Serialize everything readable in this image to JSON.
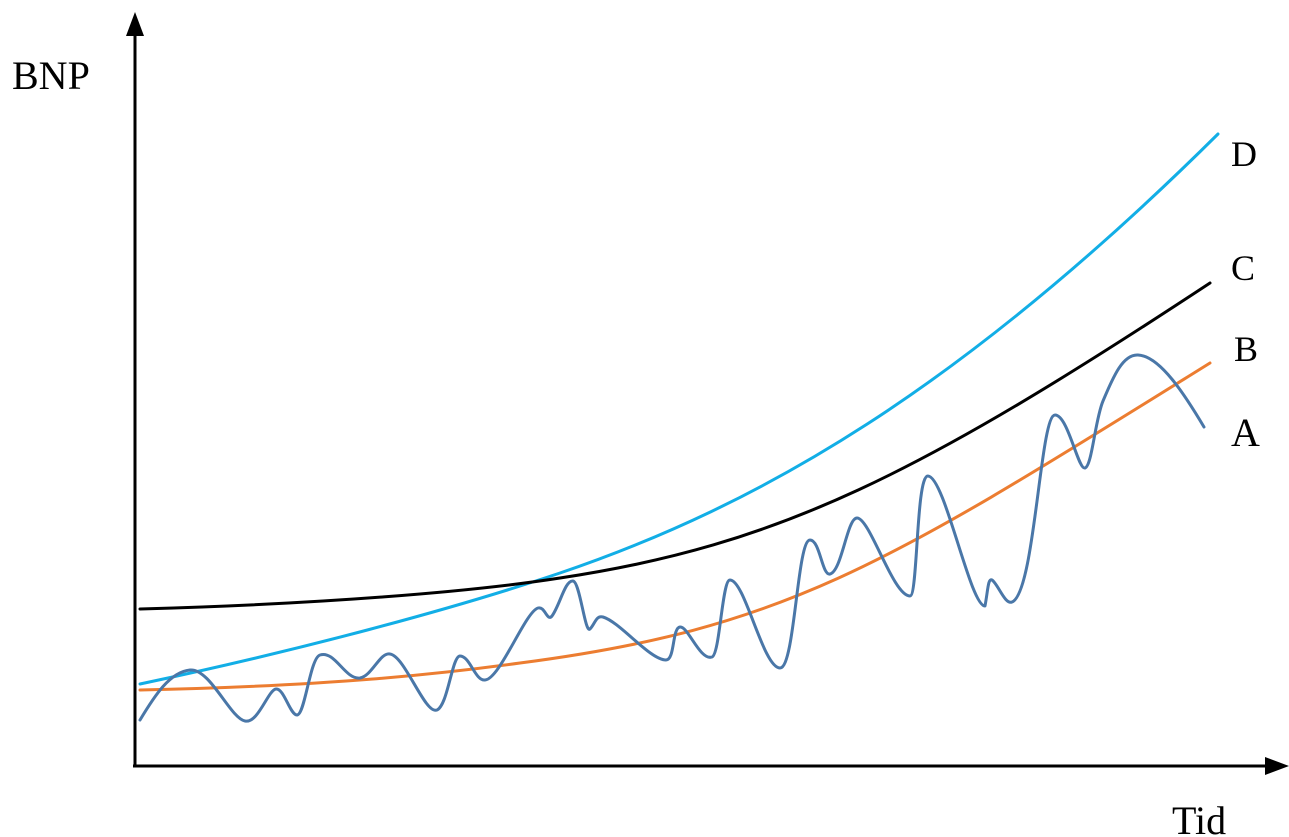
{
  "y_axis_label": "BNP",
  "x_axis_label": "Tid",
  "curves": [
    {
      "label": "A",
      "color": "#4A77A8",
      "shape": "fluctuating around B"
    },
    {
      "label": "B",
      "color": "#EC7D31",
      "shape": "rising, convex"
    },
    {
      "label": "C",
      "color": "#000000",
      "shape": "rising, convex, higher start"
    },
    {
      "label": "D",
      "color": "#12AEE6",
      "shape": "rising steeply from low start"
    }
  ]
}
